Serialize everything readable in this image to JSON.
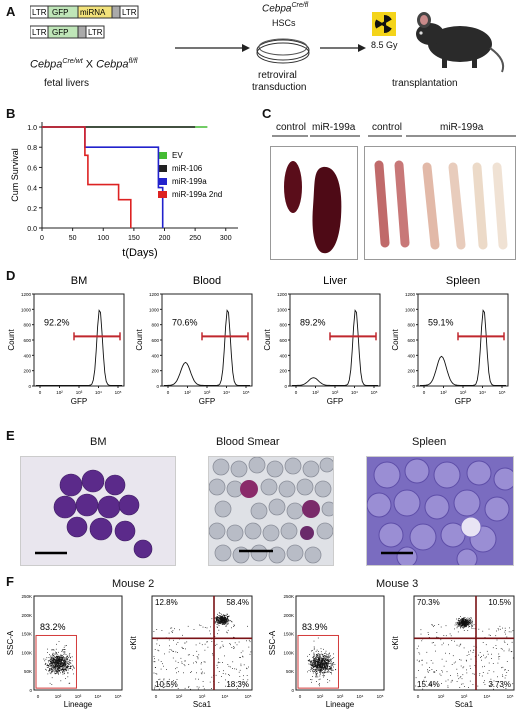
{
  "panels": {
    "A": {
      "label": "A",
      "construct1": [
        "LTR",
        "GFP",
        "miRNA",
        "LTR"
      ],
      "construct2": [
        "LTR",
        "GFP",
        "LTR"
      ],
      "cross_left": "Cebpa",
      "cross_left_sup": "Cre/wt",
      "cross_x": "X",
      "cross_right": "Cebpa",
      "cross_right_sup": "fl/fl",
      "source": "fetal livers",
      "hsc_gene": "Cebpa",
      "hsc_sup": "Cre/fl",
      "hsc_label": "HSCs",
      "step2": "retroviral",
      "step2b": "transduction",
      "dose": "8.5 Gy",
      "step3": "transplantation"
    },
    "B": {
      "label": "B",
      "ylabel": "Cum Survival",
      "xlabel": "t(Days)"
    },
    "C": {
      "label": "C",
      "spleen_control": "control",
      "spleen_mir": "miR-199a",
      "bone_control": "control",
      "bone_mir": "miR-199a"
    },
    "D": {
      "label": "D",
      "xlabel": "GFP",
      "ylabel": "Count"
    },
    "E": {
      "label": "E",
      "titles": [
        "BM",
        "Blood Smear",
        "Spleen"
      ]
    },
    "F": {
      "label": "F",
      "mouse2": "Mouse 2",
      "mouse3": "Mouse 3",
      "ssc_label": "SSC-A",
      "lineage_label": "Lineage",
      "ckit_label": "cKit",
      "sca1_label": "Sca1",
      "m2_gate": "83.2%",
      "m2_q": [
        "12.8%",
        "58.4%",
        "10.5%",
        "18.3%"
      ],
      "m3_gate": "83.9%",
      "m3_q": [
        "70.3%",
        "10.5%",
        "15.4%",
        "3.73%"
      ],
      "ssc_ticks": [
        "250K",
        "200K",
        "150K",
        "100K",
        "50K",
        "0"
      ],
      "axis_ticks": [
        "0",
        "10²",
        "10³",
        "10⁴",
        "10⁵"
      ]
    }
  },
  "chart_data": [
    {
      "type": "line",
      "title": "",
      "xlabel": "t(Days)",
      "ylabel": "Cum Survival",
      "xlim": [
        0,
        320
      ],
      "ylim": [
        0,
        1.05
      ],
      "xticks": [
        0,
        50,
        100,
        150,
        200,
        250,
        300
      ],
      "yticks": [
        0,
        0.2,
        0.4,
        0.6,
        0.8,
        1.0
      ],
      "legend_position": "right",
      "series": [
        {
          "name": "EV",
          "color": "#44bb33",
          "steps": [
            [
              0,
              1.0
            ],
            [
              270,
              1.0
            ]
          ]
        },
        {
          "name": "miR-106",
          "color": "#222222",
          "steps": [
            [
              0,
              1.0
            ],
            [
              250,
              1.0
            ]
          ]
        },
        {
          "name": "miR-199a",
          "color": "#2222cc",
          "steps": [
            [
              0,
              1.0
            ],
            [
              70,
              1.0
            ],
            [
              70,
              0.8
            ],
            [
              190,
              0.8
            ],
            [
              190,
              0.4
            ],
            [
              197,
              0.4
            ],
            [
              197,
              0.0
            ]
          ]
        },
        {
          "name": "miR-199a 2nd",
          "color": "#dd2222",
          "steps": [
            [
              0,
              1.0
            ],
            [
              70,
              1.0
            ],
            [
              70,
              0.72
            ],
            [
              75,
              0.72
            ],
            [
              75,
              0.43
            ],
            [
              125,
              0.43
            ],
            [
              125,
              0.28
            ],
            [
              145,
              0.28
            ],
            [
              145,
              0.0
            ]
          ]
        }
      ]
    },
    {
      "type": "line",
      "title": "BM",
      "xlabel": "GFP",
      "ylabel": "Count",
      "ylim": [
        0,
        1200
      ],
      "yticks": [
        0,
        200,
        400,
        600,
        800,
        1000,
        1200
      ],
      "percent": "92.2%",
      "peak_y": 1000,
      "low_peak_y": 0
    },
    {
      "type": "line",
      "title": "Blood",
      "xlabel": "GFP",
      "ylabel": "Count",
      "ylim": [
        0,
        1200
      ],
      "yticks": [
        0,
        200,
        400,
        600,
        800,
        1000,
        1200
      ],
      "percent": "70.6%",
      "peak_y": 1000,
      "low_peak_y": 300
    },
    {
      "type": "line",
      "title": "Liver",
      "xlabel": "GFP",
      "ylabel": "Count",
      "ylim": [
        0,
        1200
      ],
      "yticks": [
        0,
        200,
        400,
        600,
        800,
        1000,
        1200
      ],
      "percent": "89.2%",
      "peak_y": 1000,
      "low_peak_y": 100
    },
    {
      "type": "line",
      "title": "Spleen",
      "xlabel": "GFP",
      "ylabel": "Count",
      "ylim": [
        0,
        1200
      ],
      "yticks": [
        0,
        200,
        400,
        600,
        800,
        1000,
        1200
      ],
      "percent": "59.1%",
      "peak_y": 1000,
      "low_peak_y": 380
    }
  ]
}
